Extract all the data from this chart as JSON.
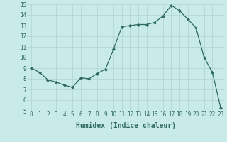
{
  "x": [
    0,
    1,
    2,
    3,
    4,
    5,
    6,
    7,
    8,
    9,
    10,
    11,
    12,
    13,
    14,
    15,
    16,
    17,
    18,
    19,
    20,
    21,
    22,
    23
  ],
  "y": [
    9.0,
    8.6,
    7.9,
    7.7,
    7.4,
    7.2,
    8.1,
    8.0,
    8.5,
    8.9,
    10.8,
    12.9,
    13.0,
    13.1,
    13.1,
    13.3,
    13.9,
    14.9,
    14.4,
    13.6,
    12.8,
    10.0,
    8.6,
    5.3
  ],
  "line_color": "#2e6b5e",
  "marker": "D",
  "marker_size": 2,
  "bg_color": "#c8eae8",
  "grid_color": "#b0d4d0",
  "xlabel": "Humidex (Indice chaleur)",
  "xlim": [
    -0.5,
    23.5
  ],
  "ylim": [
    5,
    15
  ],
  "yticks": [
    5,
    6,
    7,
    8,
    9,
    10,
    11,
    12,
    13,
    14,
    15
  ],
  "xticks": [
    0,
    1,
    2,
    3,
    4,
    5,
    6,
    7,
    8,
    9,
    10,
    11,
    12,
    13,
    14,
    15,
    16,
    17,
    18,
    19,
    20,
    21,
    22,
    23
  ],
  "tick_fontsize": 5.5,
  "xlabel_fontsize": 7.0,
  "linewidth": 0.9
}
